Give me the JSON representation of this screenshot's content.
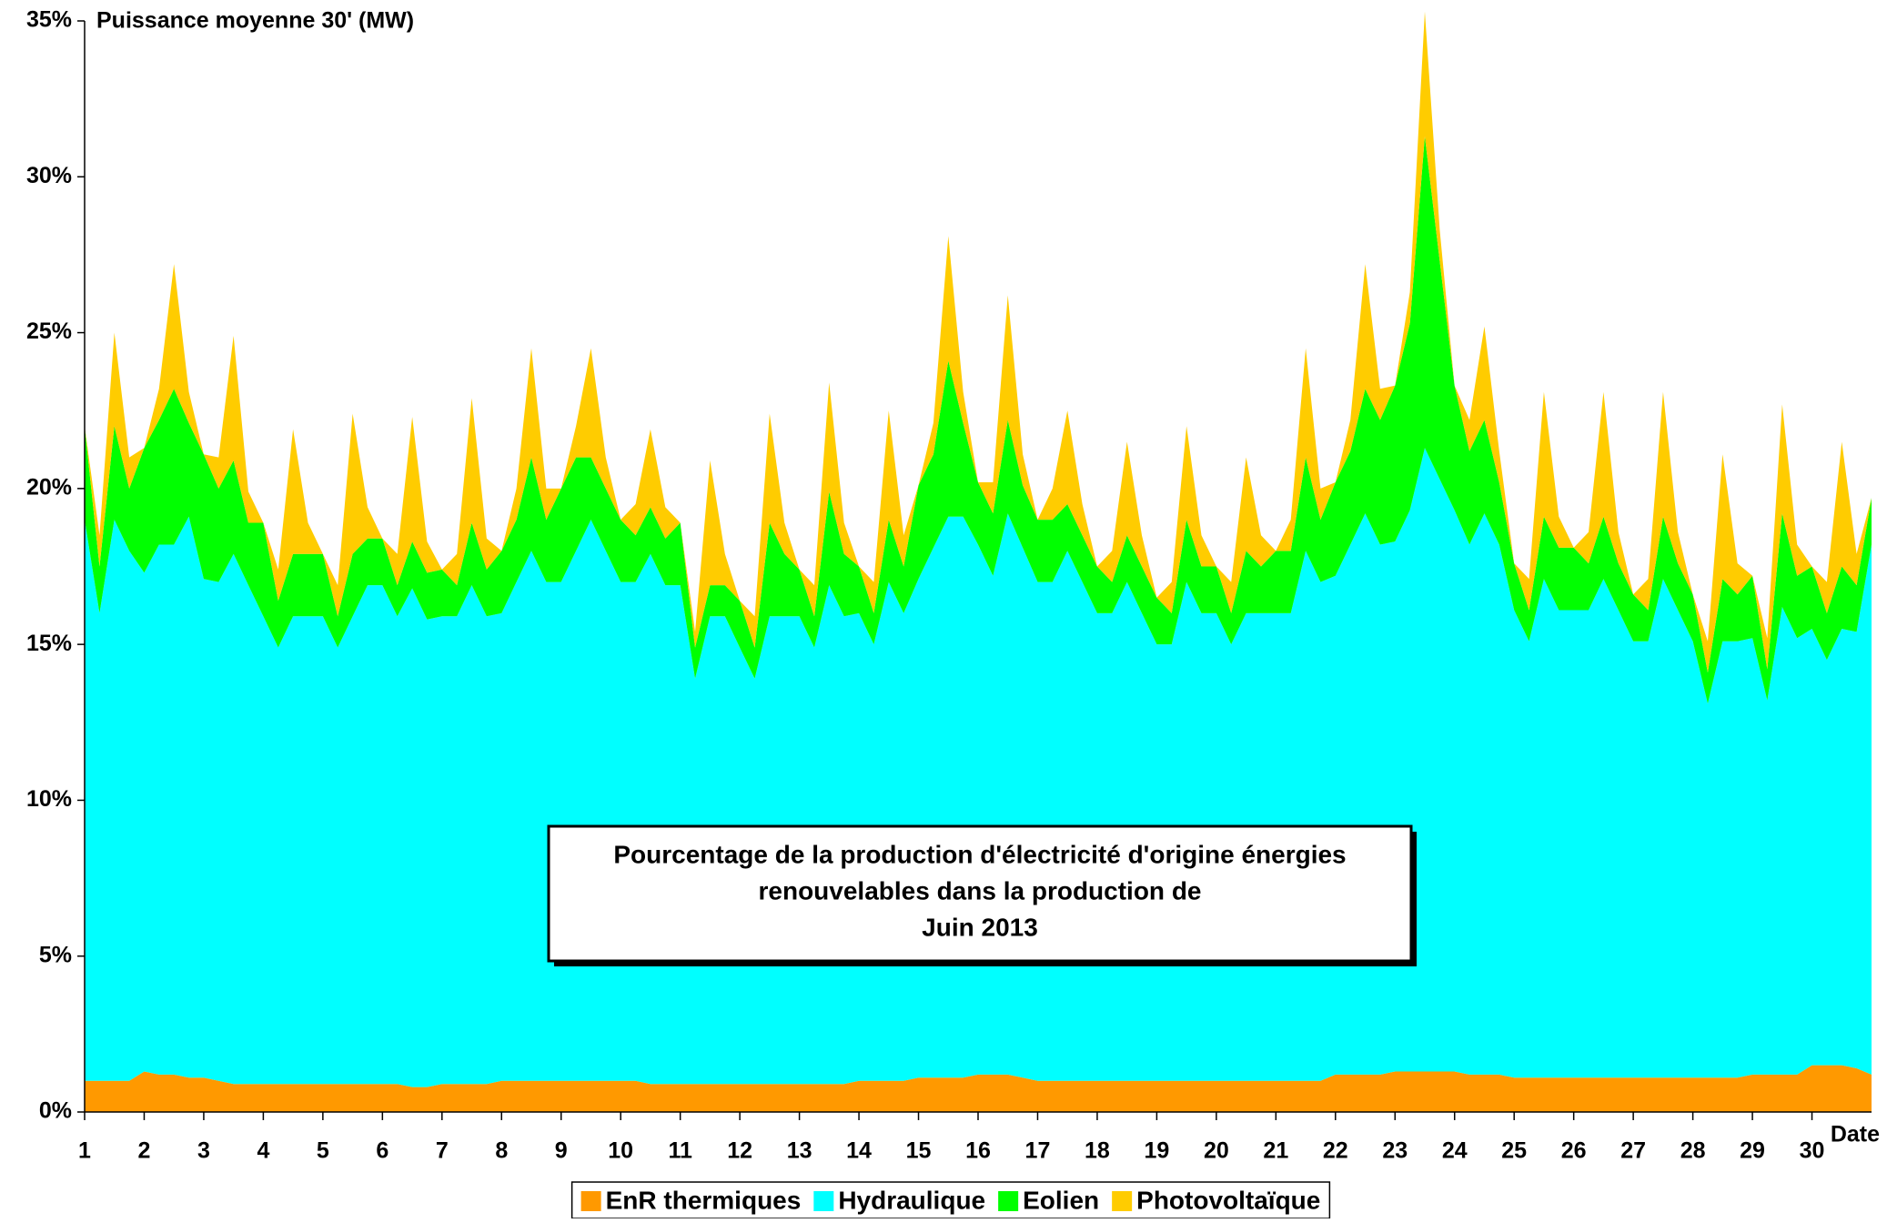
{
  "chart_data": {
    "type": "stacked_area",
    "title": [
      "Pourcentage de la production d'électricité d'origine énergies",
      "renouvelables dans la production de",
      "Juin 2013"
    ],
    "y_label": "Puissance moyenne 30' (MW)",
    "x_label": "Date",
    "xlim": [
      1,
      31
    ],
    "xticks": [
      1,
      2,
      3,
      4,
      5,
      6,
      7,
      8,
      9,
      10,
      11,
      12,
      13,
      14,
      15,
      16,
      17,
      18,
      19,
      20,
      21,
      22,
      23,
      24,
      25,
      26,
      27,
      28,
      29,
      30
    ],
    "ylim": [
      0,
      35
    ],
    "yticks": [
      {
        "value": 0,
        "label": "0%"
      },
      {
        "value": 5,
        "label": "5%"
      },
      {
        "value": 10,
        "label": "10%"
      },
      {
        "value": 15,
        "label": "15%"
      },
      {
        "value": 20,
        "label": "20%"
      },
      {
        "value": 25,
        "label": "25%"
      },
      {
        "value": 30,
        "label": "30%"
      },
      {
        "value": 35,
        "label": "35%"
      }
    ],
    "x": [
      1,
      1.25,
      1.5,
      1.75,
      2,
      2.25,
      2.5,
      2.75,
      3,
      3.25,
      3.5,
      3.75,
      4,
      4.25,
      4.5,
      4.75,
      5,
      5.25,
      5.5,
      5.75,
      6,
      6.25,
      6.5,
      6.75,
      7,
      7.25,
      7.5,
      7.75,
      8,
      8.25,
      8.5,
      8.75,
      9,
      9.25,
      9.5,
      9.75,
      10,
      10.25,
      10.5,
      10.75,
      11,
      11.25,
      11.5,
      11.75,
      12,
      12.25,
      12.5,
      12.75,
      13,
      13.25,
      13.5,
      13.75,
      14,
      14.25,
      14.5,
      14.75,
      15,
      15.25,
      15.5,
      15.75,
      16,
      16.25,
      16.5,
      16.75,
      17,
      17.25,
      17.5,
      17.75,
      18,
      18.25,
      18.5,
      18.75,
      19,
      19.25,
      19.5,
      19.75,
      20,
      20.25,
      20.5,
      20.75,
      21,
      21.25,
      21.5,
      21.75,
      22,
      22.25,
      22.5,
      22.75,
      23,
      23.25,
      23.5,
      23.75,
      24,
      24.25,
      24.5,
      24.75,
      25,
      25.25,
      25.5,
      25.75,
      26,
      26.25,
      26.5,
      26.75,
      27,
      27.25,
      27.5,
      27.75,
      28,
      28.25,
      28.5,
      28.75,
      29,
      29.25,
      29.5,
      29.75,
      30,
      30.25,
      30.5,
      30.75,
      31
    ],
    "legend": "bottom",
    "series": [
      {
        "name": "EnR thermiques",
        "color": "#ff9900",
        "values": [
          1,
          1,
          1,
          1,
          1.3,
          1.2,
          1.2,
          1.1,
          1.1,
          1,
          0.9,
          0.9,
          0.9,
          0.9,
          0.9,
          0.9,
          0.9,
          0.9,
          0.9,
          0.9,
          0.9,
          0.9,
          0.8,
          0.8,
          0.9,
          0.9,
          0.9,
          0.9,
          1,
          1,
          1,
          1,
          1,
          1,
          1,
          1,
          1,
          1,
          0.9,
          0.9,
          0.9,
          0.9,
          0.9,
          0.9,
          0.9,
          0.9,
          0.9,
          0.9,
          0.9,
          0.9,
          0.9,
          0.9,
          1,
          1,
          1,
          1,
          1.1,
          1.1,
          1.1,
          1.1,
          1.2,
          1.2,
          1.2,
          1.1,
          1,
          1,
          1,
          1,
          1,
          1,
          1,
          1,
          1,
          1,
          1,
          1,
          1,
          1,
          1,
          1,
          1,
          1,
          1,
          1,
          1.2,
          1.2,
          1.2,
          1.2,
          1.3,
          1.3,
          1.3,
          1.3,
          1.3,
          1.2,
          1.2,
          1.2,
          1.1,
          1.1,
          1.1,
          1.1,
          1.1,
          1.1,
          1.1,
          1.1,
          1.1,
          1.1,
          1.1,
          1.1,
          1.1,
          1.1,
          1.1,
          1.1,
          1.2,
          1.2,
          1.2,
          1.2,
          1.5,
          1.5,
          1.5,
          1.4,
          1.2
        ]
      },
      {
        "name": "Hydraulique",
        "color": "#00ffff",
        "values": [
          18,
          15,
          18,
          17,
          16,
          17,
          17,
          18,
          16,
          16,
          17,
          16,
          15,
          14,
          15,
          15,
          15,
          14,
          15,
          16,
          16,
          15,
          16,
          15,
          15,
          15,
          16,
          15,
          15,
          16,
          17,
          16,
          16,
          17,
          18,
          17,
          16,
          16,
          17,
          16,
          16,
          13,
          15,
          15,
          14,
          13,
          15,
          15,
          15,
          14,
          16,
          15,
          15,
          14,
          16,
          15,
          16,
          17,
          18,
          18,
          17,
          16,
          18,
          17,
          16,
          16,
          17,
          16,
          15,
          15,
          16,
          15,
          14,
          14,
          16,
          15,
          15,
          14,
          15,
          15,
          15,
          15,
          17,
          16,
          16,
          17,
          18,
          17,
          17,
          18,
          20,
          19,
          18,
          17,
          18,
          17,
          15,
          14,
          16,
          15,
          15,
          15,
          16,
          15,
          14,
          14,
          16,
          15,
          14,
          12,
          14,
          14,
          14,
          12,
          15,
          14,
          14,
          13,
          14,
          14,
          17
        ]
      },
      {
        "name": "Eolien",
        "color": "#00ff00",
        "values": [
          3,
          1.5,
          3,
          2,
          4,
          4,
          5,
          3,
          4,
          3,
          3,
          2,
          3,
          1.5,
          2,
          2,
          2,
          1,
          2,
          1.5,
          1.5,
          1,
          1.5,
          1.5,
          1.5,
          1,
          2,
          1.5,
          2,
          2,
          3,
          2,
          3,
          3,
          2,
          2,
          2,
          1.5,
          1.5,
          1.5,
          2,
          1,
          1,
          1,
          1.5,
          1,
          3,
          2,
          1.5,
          1,
          3,
          2,
          1.5,
          1,
          2,
          1.5,
          3,
          3,
          5,
          3,
          2,
          2,
          3,
          2,
          2,
          2,
          1.5,
          1.5,
          1.5,
          1,
          1.5,
          1.5,
          1.5,
          1,
          2,
          1.5,
          1.5,
          1,
          2,
          1.5,
          2,
          2,
          3,
          2,
          3,
          3,
          4,
          4,
          5,
          6,
          10,
          7,
          4,
          3,
          3,
          2,
          1.5,
          1,
          2,
          2,
          2,
          1.5,
          2,
          1.5,
          1.5,
          1,
          2,
          1.5,
          1.5,
          1,
          2,
          1.5,
          2,
          1,
          3,
          2,
          2,
          1.5,
          2,
          1.5,
          1.5
        ]
      },
      {
        "name": "Photovoltaïque",
        "color": "#ffcc00",
        "values": [
          0,
          1,
          3,
          1,
          0,
          1,
          4,
          1,
          0,
          1,
          4,
          1,
          0,
          1,
          4,
          1,
          0,
          1,
          4.5,
          1,
          0,
          1,
          4,
          1,
          0,
          1,
          4,
          1,
          0,
          1,
          3.5,
          1,
          0,
          1,
          3.5,
          1,
          0,
          1,
          2.5,
          1,
          0,
          0.5,
          4,
          1,
          0,
          1,
          3.5,
          1,
          0,
          1,
          3.5,
          1,
          0,
          1,
          3.5,
          1,
          0,
          1,
          4,
          1,
          0,
          1,
          4,
          1,
          0,
          1,
          3,
          1,
          0,
          1,
          3,
          1,
          0,
          1,
          3,
          1,
          0,
          1,
          3,
          1,
          0,
          1,
          3.5,
          1,
          0,
          1,
          4,
          1,
          0,
          1,
          4,
          1,
          0,
          1,
          3,
          1,
          0,
          1,
          4,
          1,
          0,
          1,
          4,
          1,
          0,
          1,
          4,
          1,
          0,
          1,
          4,
          1,
          0,
          1,
          3.5,
          1,
          0,
          1,
          4,
          1,
          0
        ]
      }
    ]
  }
}
